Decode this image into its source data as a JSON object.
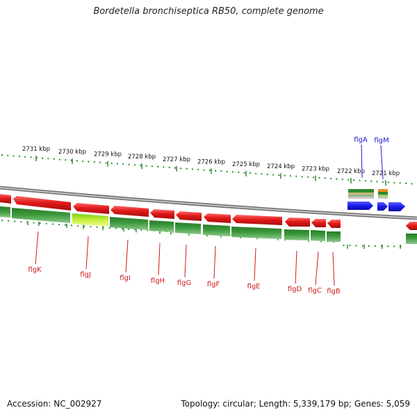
{
  "title": "Bordetella bronchiseptica RB50, complete genome",
  "footer": {
    "accession": "Accession: NC_002927",
    "summary": "Topology: circular; Length: 5,339,179 bp; Genes: 5,059"
  },
  "colors": {
    "ticks": "#2e8b2e",
    "backbone": "#8a8a8a",
    "cds": "#e21a1a",
    "gene_bar": "#2f8a2f",
    "highlight": "#aee03a",
    "rna": "#1a1aee",
    "orange": "#ee8a1a",
    "label_red": "#cc1a1a",
    "label_blue": "#1a1acc"
  },
  "diagram": {
    "ticks": [
      "2731 kbp",
      "2730 kbp",
      "2729 kbp",
      "2728 kbp",
      "2727 kbp",
      "2726 kbp",
      "2725 kbp",
      "2724 kbp",
      "2723 kbp",
      "2722 kbp",
      "2721 kbp"
    ],
    "genes": [
      {
        "label": "flgK",
        "strand": "reverse"
      },
      {
        "label": "flgJ",
        "strand": "reverse"
      },
      {
        "label": "flgI",
        "strand": "reverse"
      },
      {
        "label": "flgH",
        "strand": "reverse"
      },
      {
        "label": "flgG",
        "strand": "reverse"
      },
      {
        "label": "flgF",
        "strand": "reverse"
      },
      {
        "label": "flgE",
        "strand": "reverse"
      },
      {
        "label": "flgD",
        "strand": "reverse"
      },
      {
        "label": "flgC",
        "strand": "reverse"
      },
      {
        "label": "flgB",
        "strand": "reverse"
      },
      {
        "label": "flgA",
        "strand": "forward"
      },
      {
        "label": "flgM",
        "strand": "forward"
      }
    ]
  }
}
